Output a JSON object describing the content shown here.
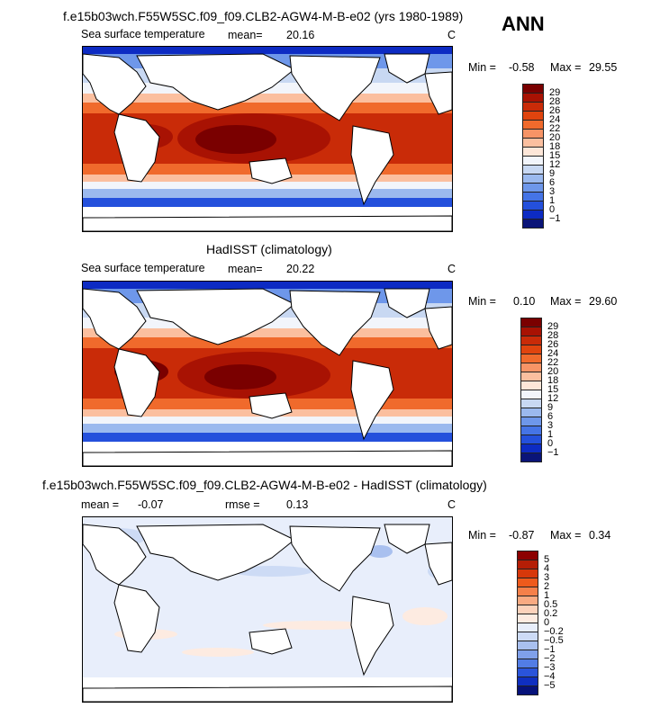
{
  "header": {
    "ann_label": "ANN"
  },
  "panels": [
    {
      "title": "f.e15b03wch.F55W5SC.f09_f09.CLB2-AGW4-M-B-e02 (yrs 1980-1989)",
      "left_label": "Sea surface temperature",
      "mean_label": "mean=",
      "mean_value": "20.16",
      "unit": "C",
      "min_label": "Min =",
      "min_value": "-0.58",
      "max_label": "Max =",
      "max_value": "29.55",
      "colorbar_labels": [
        "29",
        "28",
        "26",
        "24",
        "22",
        "20",
        "18",
        "15",
        "12",
        "9",
        "6",
        "3",
        "1",
        "0",
        "−1"
      ]
    },
    {
      "title": "HadISST (climatology)",
      "left_label": "Sea surface temperature",
      "mean_label": "mean=",
      "mean_value": "20.22",
      "unit": "C",
      "min_label": "Min =",
      "min_value": "0.10",
      "max_label": "Max =",
      "max_value": "29.60",
      "colorbar_labels": [
        "29",
        "28",
        "26",
        "24",
        "22",
        "20",
        "18",
        "15",
        "12",
        "9",
        "6",
        "3",
        "1",
        "0",
        "−1"
      ]
    },
    {
      "title": "f.e15b03wch.F55W5SC.f09_f09.CLB2-AGW4-M-B-e02 - HadISST (climatology)",
      "mean_label": "mean =",
      "mean_value": "-0.07",
      "rmse_label": "rmse =",
      "rmse_value": "0.13",
      "unit": "C",
      "min_label": "Min =",
      "min_value": "-0.87",
      "max_label": "Max =",
      "max_value": "0.34",
      "colorbar_labels": [
        "5",
        "4",
        "3",
        "2",
        "1",
        "0.5",
        "0.2",
        "0",
        "−0.2",
        "−0.5",
        "−1",
        "−2",
        "−3",
        "−4",
        "−5"
      ]
    }
  ],
  "colors": {
    "sst_scale": [
      "#7a0000",
      "#a81203",
      "#c92b08",
      "#e0440e",
      "#f06a2c",
      "#f79466",
      "#fbbf9f",
      "#fde6d8",
      "#f2f5fb",
      "#c8d8f2",
      "#9bb9ee",
      "#6e97ea",
      "#4574e6",
      "#2450dc",
      "#0d2bc3",
      "#0a1478"
    ],
    "diff_scale": [
      "#8c0000",
      "#b51e06",
      "#d7380a",
      "#ee5a1c",
      "#f5804a",
      "#f9aa82",
      "#fcd2bb",
      "#fdebe1",
      "#e8eefb",
      "#cddbf5",
      "#a9c0ef",
      "#7fa0ea",
      "#527de5",
      "#2a54da",
      "#0f2fc0",
      "#06127a"
    ]
  }
}
